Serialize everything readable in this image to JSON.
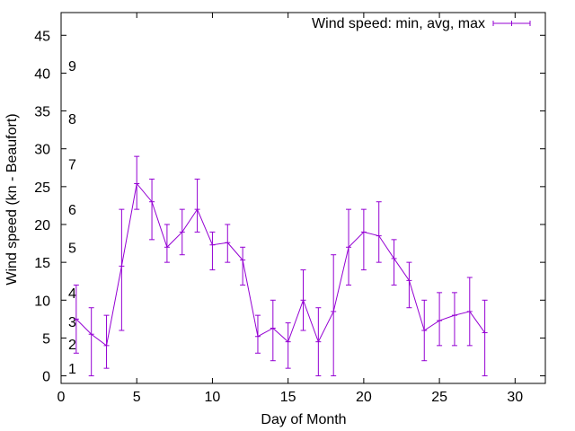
{
  "chart_data": {
    "type": "line",
    "title": "",
    "xlabel": "Day of Month",
    "ylabel": "Wind speed (kn - Beaufort)",
    "xlim": [
      0,
      32
    ],
    "ylim": [
      -1,
      48
    ],
    "xticks": [
      0,
      5,
      10,
      15,
      20,
      25,
      30
    ],
    "yticks": [
      0,
      5,
      10,
      15,
      20,
      25,
      30,
      35,
      40,
      45
    ],
    "grid": false,
    "legend": "top-right",
    "color": "#9400d3",
    "beaufort_labels": [
      {
        "label": "1",
        "y": 1
      },
      {
        "label": "2",
        "y": 4.2
      },
      {
        "label": "3",
        "y": 7.2
      },
      {
        "label": "4",
        "y": 11
      },
      {
        "label": "5",
        "y": 17
      },
      {
        "label": "6",
        "y": 22
      },
      {
        "label": "7",
        "y": 28
      },
      {
        "label": "8",
        "y": 34
      },
      {
        "label": "9",
        "y": 41
      }
    ],
    "series": [
      {
        "name": "Wind speed: min, avg, max",
        "x": [
          1,
          2,
          3,
          4,
          5,
          6,
          7,
          8,
          9,
          10,
          11,
          12,
          13,
          14,
          15,
          16,
          17,
          18,
          19,
          20,
          21,
          22,
          23,
          24,
          25,
          26,
          27,
          28
        ],
        "avg": [
          7.5,
          5.5,
          4.0,
          14.5,
          25.4,
          23.0,
          17.0,
          19.0,
          22.0,
          17.3,
          17.6,
          15.3,
          5.2,
          6.3,
          4.5,
          10.0,
          4.5,
          8.5,
          17.0,
          19.0,
          18.5,
          15.5,
          12.6,
          6.0,
          7.3,
          8.0,
          8.5,
          5.7
        ],
        "min": [
          3.0,
          0.0,
          1.0,
          6.0,
          22.0,
          18.0,
          15.0,
          16.0,
          19.0,
          14.0,
          15.0,
          12.0,
          3.0,
          2.0,
          1.0,
          6.0,
          0.0,
          0.0,
          12.0,
          14.0,
          15.0,
          12.0,
          9.0,
          2.0,
          4.0,
          4.0,
          4.0,
          0.0
        ],
        "max": [
          12.0,
          9.0,
          8.0,
          22.0,
          29.0,
          26.0,
          20.0,
          22.0,
          26.0,
          19.0,
          20.0,
          17.0,
          8.0,
          10.0,
          7.0,
          14.0,
          9.0,
          16.0,
          22.0,
          22.0,
          23.0,
          18.0,
          15.0,
          10.0,
          11.0,
          11.0,
          13.0,
          10.0
        ]
      }
    ]
  }
}
